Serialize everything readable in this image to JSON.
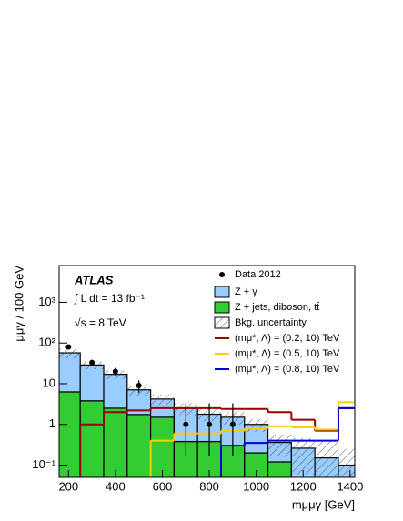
{
  "chart_data": {
    "type": "histogram",
    "annotations": [
      "ATLAS",
      "∫ L dt = 13 fb⁻¹",
      "√s = 8 TeV"
    ],
    "xlabel": "mμμγ [GeV]",
    "ylabel": "μμγ / 100 GeV",
    "bins": [
      150,
      250,
      350,
      450,
      550,
      650,
      750,
      850,
      950,
      1050,
      1150,
      1250,
      1350,
      1450
    ],
    "xlim": [
      160,
      1420
    ],
    "xticks": [
      200,
      400,
      600,
      800,
      1000,
      1200,
      1400
    ],
    "ylim": [
      0.05,
      8000
    ],
    "log_y": true,
    "yticks": [
      {
        "value": 0.1,
        "label": "10⁻¹"
      },
      1,
      10,
      {
        "value": 100,
        "label": "10²"
      },
      {
        "value": 1000,
        "label": "10³"
      }
    ],
    "stack": [
      {
        "name": "Z + jets, diboson, tt̄",
        "color": "#33cc33",
        "values": [
          6.3,
          3.8,
          2.5,
          1.75,
          1.5,
          0.38,
          0.38,
          0.3,
          0.2,
          0.12,
          null,
          null,
          null
        ]
      },
      {
        "name": "Z + γ",
        "color": "#99ccff",
        "values": [
          51,
          25,
          14.5,
          5.3,
          2.7,
          2.1,
          1.4,
          1.2,
          0.8,
          0.24,
          0.26,
          0.15,
          0.1
        ]
      }
    ],
    "uncertainty": {
      "name": "Bkg. uncertainty",
      "values": [
        15,
        6,
        4,
        2,
        1.2,
        0.8,
        0.6,
        0.5,
        0.35,
        0.2,
        0.2,
        0.25,
        0.15
      ]
    },
    "data": {
      "name": "Data 2012",
      "color": "#000000",
      "x": [
        200,
        300,
        400,
        500,
        700,
        800,
        900
      ],
      "values": [
        80,
        33,
        20,
        9,
        1,
        1,
        1
      ],
      "errors_low": [
        9,
        6,
        4.5,
        3,
        0.83,
        0.83,
        0.83
      ],
      "errors_high": [
        9,
        6,
        4.5,
        3,
        2.3,
        2.3,
        2.3
      ]
    },
    "signals": [
      {
        "name": "(mμ*, Λ) = (0.2, 10) TeV",
        "color": "#990000",
        "values": [
          null,
          1.0,
          2.0,
          2.2,
          2.5,
          2.5,
          2.5,
          2.4,
          2.4,
          2.0,
          1.3,
          0.7,
          2.5
        ]
      },
      {
        "name": "(mμ*, Λ) = (0.5, 10) TeV",
        "color": "#ffcc00",
        "values": [
          null,
          null,
          null,
          null,
          0.4,
          0.6,
          0.6,
          0.7,
          0.8,
          0.9,
          0.85,
          0.75,
          3.5
        ]
      },
      {
        "name": "(mμ*, Λ) = (0.8, 10) TeV",
        "color": "#0000dd",
        "values": [
          null,
          null,
          null,
          null,
          null,
          null,
          null,
          0.3,
          0.35,
          0.4,
          0.4,
          0.4,
          2.5
        ]
      }
    ]
  }
}
